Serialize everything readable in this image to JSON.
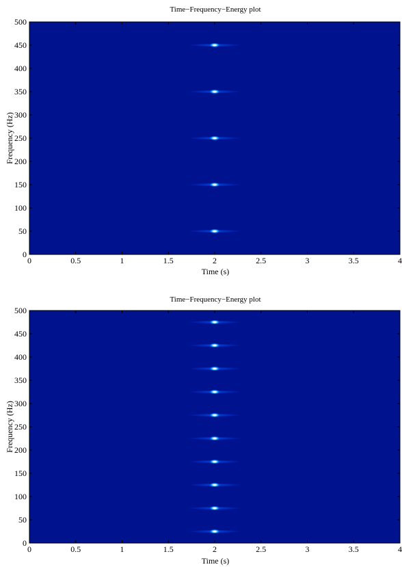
{
  "chart_data": [
    {
      "type": "heatmap",
      "title": "Time−Frequency−Energy plot",
      "xlabel": "Time (s)",
      "ylabel": "Frequency (Hz)",
      "xlim": [
        0,
        4
      ],
      "ylim": [
        0,
        500
      ],
      "xticks": [
        "0",
        "0.5",
        "1",
        "1.5",
        "2",
        "2.5",
        "3",
        "3.5",
        "4"
      ],
      "yticks": [
        "0",
        "50",
        "100",
        "150",
        "200",
        "250",
        "300",
        "350",
        "400",
        "450",
        "500"
      ],
      "colors": {
        "background": "#00128e",
        "peak_core": "#ffffff",
        "peak_halo": "#00c8ff"
      },
      "grid": false,
      "points": [
        {
          "x": 2,
          "y": 50
        },
        {
          "x": 2,
          "y": 150
        },
        {
          "x": 2,
          "y": 250
        },
        {
          "x": 2,
          "y": 350
        },
        {
          "x": 2,
          "y": 450
        }
      ]
    },
    {
      "type": "heatmap",
      "title": "Time−Frequency−Energy plot",
      "xlabel": "Time (s)",
      "ylabel": "Frequency (Hz)",
      "xlim": [
        0,
        4
      ],
      "ylim": [
        0,
        500
      ],
      "xticks": [
        "0",
        "0.5",
        "1",
        "1.5",
        "2",
        "2.5",
        "3",
        "3.5",
        "4"
      ],
      "yticks": [
        "0",
        "50",
        "100",
        "150",
        "200",
        "250",
        "300",
        "350",
        "400",
        "450",
        "500"
      ],
      "colors": {
        "background": "#00128e",
        "peak_core": "#ffffff",
        "peak_halo": "#00c8ff"
      },
      "grid": false,
      "points": [
        {
          "x": 2,
          "y": 25
        },
        {
          "x": 2,
          "y": 75
        },
        {
          "x": 2,
          "y": 125
        },
        {
          "x": 2,
          "y": 175
        },
        {
          "x": 2,
          "y": 225
        },
        {
          "x": 2,
          "y": 275
        },
        {
          "x": 2,
          "y": 325
        },
        {
          "x": 2,
          "y": 375
        },
        {
          "x": 2,
          "y": 425
        },
        {
          "x": 2,
          "y": 475
        }
      ]
    }
  ]
}
